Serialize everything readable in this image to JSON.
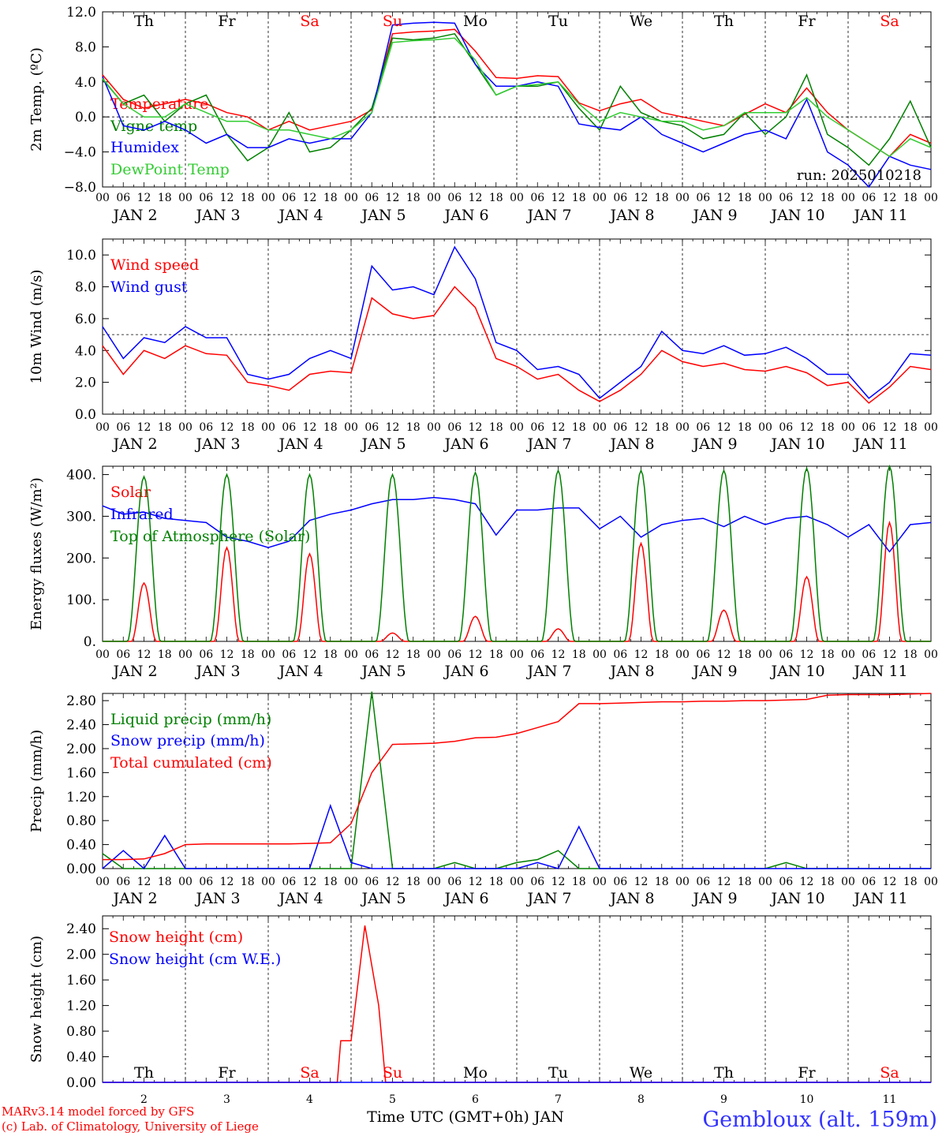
{
  "footer": {
    "model": "MARv3.14 model forced by GFS",
    "copyright": "(c) Lab. of Climatology, University of Liege",
    "station": "Gembloux (alt. 159m)",
    "time_axis": "Time UTC (GMT+0h) JAN"
  },
  "colors": {
    "red": "#ff0000",
    "green": "#008000",
    "blue": "#0000ff",
    "lightgreen": "#33cc33",
    "station": "#3333ff"
  },
  "time_axis": {
    "hour_ticks": [
      "00",
      "06",
      "12",
      "18"
    ],
    "days": [
      "JAN  2",
      "JAN  3",
      "JAN  4",
      "JAN  5",
      "JAN  6",
      "JAN  7",
      "JAN  8",
      "JAN  9",
      "JAN 10",
      "JAN 11"
    ],
    "weekdays": [
      "Th",
      "Fr",
      "Sa",
      "Su",
      "Mo",
      "Tu",
      "We",
      "Th",
      "Fr",
      "Sa"
    ],
    "weekend": [
      false,
      false,
      true,
      true,
      false,
      false,
      false,
      false,
      false,
      true
    ],
    "day_numbers": [
      "2",
      "3",
      "4",
      "5",
      "6",
      "7",
      "8",
      "9",
      "10",
      "11"
    ]
  },
  "chart_data": [
    {
      "type": "line",
      "ylabel": "2m Temp. (ºC)",
      "ylim": [
        -8,
        12
      ],
      "yticks": [
        "12.0",
        "8.0",
        "4.0",
        "0.0",
        "−4.0",
        "−8.0"
      ],
      "annotation": "run: 2025010218",
      "x_hours": [
        0,
        6,
        12,
        18,
        24,
        30,
        36,
        42,
        48,
        54,
        60,
        66,
        72,
        78,
        84,
        90,
        96,
        102,
        108,
        114,
        120,
        126,
        132,
        138,
        144,
        150,
        156,
        162,
        168,
        174,
        180,
        186,
        192,
        198,
        204,
        210,
        216,
        222,
        228,
        234,
        240
      ],
      "series": [
        {
          "name": "Temperature",
          "color": "red",
          "values": [
            4.8,
            2.0,
            1.0,
            1.5,
            2.0,
            1.5,
            0.5,
            0.0,
            -1.5,
            -0.5,
            -1.5,
            -1.0,
            -0.5,
            0.8,
            9.5,
            9.7,
            9.8,
            10.0,
            7.5,
            4.5,
            4.4,
            4.7,
            4.6,
            1.6,
            0.7,
            1.5,
            2.0,
            0.5,
            0.0,
            -0.5,
            -1.0,
            0.3,
            1.5,
            0.5,
            3.3,
            0.5,
            -1.5,
            -3.0,
            -4.5,
            -2.0,
            -3.0
          ]
        },
        {
          "name": "Vigne temp",
          "color": "green",
          "values": [
            4.3,
            1.5,
            2.5,
            -0.5,
            1.5,
            2.5,
            -2.0,
            -5.0,
            -3.5,
            0.5,
            -4.0,
            -3.5,
            -1.5,
            1.0,
            9.0,
            8.8,
            9.0,
            9.5,
            6.0,
            2.5,
            3.5,
            3.5,
            4.0,
            1.0,
            -1.5,
            3.5,
            0.5,
            -0.5,
            -1.0,
            -2.5,
            -2.0,
            0.5,
            -2.0,
            0.0,
            4.8,
            -2.0,
            -3.5,
            -5.5,
            -2.5,
            1.8,
            -3.5
          ]
        },
        {
          "name": "Humidex",
          "color": "blue",
          "values": [
            4.6,
            -1.0,
            -1.5,
            -0.5,
            -1.5,
            -3.0,
            -2.0,
            -3.5,
            -3.5,
            -2.5,
            -3.0,
            -2.5,
            -2.5,
            0.5,
            10.5,
            10.7,
            10.8,
            10.7,
            6.0,
            3.5,
            3.5,
            4.0,
            3.5,
            -0.8,
            -1.2,
            -1.5,
            0.0,
            -2.0,
            -3.0,
            -4.0,
            -3.0,
            -2.0,
            -1.5,
            -2.5,
            2.0,
            -4.0,
            -5.5,
            -8.0,
            -4.5,
            -5.5,
            -6.0
          ]
        },
        {
          "name": "DewPoint Temp",
          "color": "lightgreen",
          "values": [
            4.4,
            1.5,
            0.0,
            0.0,
            1.5,
            0.5,
            -0.5,
            -0.5,
            -1.5,
            -1.5,
            -2.0,
            -2.5,
            -1.5,
            0.5,
            8.5,
            8.7,
            8.8,
            9.0,
            6.5,
            2.5,
            3.5,
            3.7,
            4.0,
            1.5,
            -0.5,
            0.5,
            0.0,
            -0.5,
            -0.5,
            -1.5,
            -1.0,
            0.5,
            0.5,
            0.5,
            2.2,
            0.0,
            -1.5,
            -3.0,
            -4.5,
            -2.5,
            -3.5
          ]
        }
      ]
    },
    {
      "type": "line",
      "ylabel": "10m Wind (m/s)",
      "ylim": [
        0,
        11
      ],
      "yticks": [
        "10.0",
        "8.0",
        "6.0",
        "4.0",
        "2.0",
        "0.0"
      ],
      "x_hours": [
        0,
        6,
        12,
        18,
        24,
        30,
        36,
        42,
        48,
        54,
        60,
        66,
        72,
        78,
        84,
        90,
        96,
        102,
        108,
        114,
        120,
        126,
        132,
        138,
        144,
        150,
        156,
        162,
        168,
        174,
        180,
        186,
        192,
        198,
        204,
        210,
        216,
        222,
        228,
        234,
        240
      ],
      "series": [
        {
          "name": "Wind speed",
          "color": "red",
          "values": [
            4.3,
            2.5,
            4.0,
            3.5,
            4.3,
            3.8,
            3.7,
            2.0,
            1.8,
            1.5,
            2.5,
            2.7,
            2.6,
            7.3,
            6.3,
            6.0,
            6.2,
            8.0,
            6.7,
            3.5,
            3.0,
            2.2,
            2.5,
            1.5,
            0.8,
            1.5,
            2.5,
            4.0,
            3.3,
            3.0,
            3.2,
            2.8,
            2.7,
            3.0,
            2.6,
            1.8,
            2.0,
            0.7,
            1.7,
            3.0,
            2.8
          ]
        },
        {
          "name": "Wind gust",
          "color": "blue",
          "values": [
            5.5,
            3.5,
            4.8,
            4.5,
            5.5,
            4.8,
            4.8,
            2.5,
            2.2,
            2.5,
            3.5,
            4.0,
            3.5,
            9.3,
            7.8,
            8.0,
            7.5,
            10.5,
            8.5,
            4.5,
            4.0,
            2.8,
            3.0,
            2.5,
            1.0,
            2.0,
            3.0,
            5.2,
            4.0,
            3.8,
            4.3,
            3.7,
            3.8,
            4.2,
            3.5,
            2.5,
            2.5,
            1.0,
            2.0,
            3.8,
            3.7
          ]
        }
      ]
    },
    {
      "type": "line",
      "ylabel": "Energy fluxes (W/m²)",
      "ylim": [
        0,
        420
      ],
      "yticks": [
        "400.",
        "300.",
        "200.",
        "100.",
        "0."
      ],
      "series": [
        {
          "name": "Solar",
          "color": "red",
          "peaks": [
            140,
            225,
            210,
            20,
            60,
            30,
            235,
            75,
            155,
            285
          ]
        },
        {
          "name": "Infrared",
          "color": "blue",
          "x_hours": [
            0,
            6,
            12,
            18,
            24,
            30,
            36,
            42,
            48,
            54,
            60,
            66,
            72,
            78,
            84,
            90,
            96,
            102,
            108,
            114,
            120,
            126,
            132,
            138,
            144,
            150,
            156,
            162,
            168,
            174,
            180,
            186,
            192,
            198,
            204,
            210,
            216,
            222,
            228,
            234,
            240
          ],
          "values": [
            325,
            305,
            310,
            295,
            290,
            285,
            250,
            240,
            225,
            240,
            290,
            305,
            315,
            330,
            340,
            340,
            345,
            340,
            330,
            255,
            315,
            315,
            320,
            320,
            270,
            300,
            250,
            280,
            290,
            295,
            275,
            300,
            280,
            295,
            300,
            280,
            250,
            280,
            215,
            280,
            285
          ]
        },
        {
          "name": "Top of Atmosphere (Solar)",
          "color": "green",
          "peaks": [
            395,
            400,
            400,
            400,
            405,
            410,
            410,
            410,
            415,
            420
          ]
        }
      ]
    },
    {
      "type": "line",
      "ylabel": "Precip (mm/h)",
      "ylim": [
        0,
        2.92
      ],
      "yticks": [
        "2.80",
        "2.40",
        "2.00",
        "1.60",
        "1.20",
        "0.80",
        "0.40",
        "0.00"
      ],
      "x_hours": [
        0,
        6,
        12,
        18,
        24,
        30,
        36,
        42,
        48,
        54,
        60,
        66,
        72,
        78,
        84,
        90,
        96,
        102,
        108,
        114,
        120,
        126,
        132,
        138,
        144,
        150,
        156,
        162,
        168,
        174,
        180,
        186,
        192,
        198,
        204,
        210,
        216,
        222,
        228,
        234,
        240
      ],
      "series": [
        {
          "name": "Liquid precip (mm/h)",
          "color": "green",
          "values": [
            0.25,
            0.0,
            0.0,
            0.0,
            0.0,
            0.0,
            0.0,
            0.0,
            0.0,
            0.0,
            0.0,
            0.0,
            0.0,
            2.95,
            0.0,
            0.0,
            0.0,
            0.1,
            0.0,
            0.0,
            0.1,
            0.15,
            0.3,
            0.0,
            0.0,
            0.0,
            0.0,
            0.0,
            0.0,
            0.0,
            0.0,
            0.0,
            0.0,
            0.1,
            0.0,
            0.0,
            0.0,
            0.0,
            0.0,
            0.0,
            0.0
          ]
        },
        {
          "name": "Snow precip (mm/h)",
          "color": "blue",
          "values": [
            0.0,
            0.3,
            0.0,
            0.55,
            0.0,
            0.0,
            0.0,
            0.0,
            0.0,
            0.0,
            0.0,
            1.05,
            0.1,
            0.0,
            0.0,
            0.0,
            0.0,
            0.0,
            0.0,
            0.0,
            0.0,
            0.1,
            0.0,
            0.7,
            0.0,
            0.0,
            0.0,
            0.0,
            0.0,
            0.0,
            0.0,
            0.0,
            0.0,
            0.0,
            0.0,
            0.0,
            0.0,
            0.0,
            0.0,
            0.0,
            0.0
          ]
        },
        {
          "name": "Total cumulated (cm)",
          "color": "red",
          "values": [
            0.15,
            0.15,
            0.16,
            0.25,
            0.4,
            0.41,
            0.41,
            0.41,
            0.41,
            0.41,
            0.42,
            0.43,
            0.75,
            1.6,
            2.07,
            2.08,
            2.09,
            2.12,
            2.18,
            2.19,
            2.25,
            2.35,
            2.45,
            2.75,
            2.75,
            2.76,
            2.77,
            2.78,
            2.78,
            2.79,
            2.79,
            2.8,
            2.8,
            2.81,
            2.82,
            2.89,
            2.9,
            2.9,
            2.9,
            2.91,
            2.92
          ]
        }
      ]
    },
    {
      "type": "line",
      "ylabel": "Snow height (cm)",
      "ylim": [
        0,
        2.6
      ],
      "yticks": [
        "2.40",
        "2.00",
        "1.60",
        "1.20",
        "0.80",
        "0.40",
        "0.00"
      ],
      "series": [
        {
          "name": "Snow height (cm)",
          "color": "red",
          "x_hours": [
            0,
            68,
            69,
            72,
            76,
            80,
            82,
            240
          ],
          "values": [
            0,
            0,
            0.65,
            0.65,
            2.45,
            1.2,
            0,
            0
          ]
        },
        {
          "name": "Snow height (cm W.E.)",
          "color": "blue",
          "x_hours": [
            0,
            240
          ],
          "values": [
            0,
            0
          ]
        }
      ]
    }
  ]
}
